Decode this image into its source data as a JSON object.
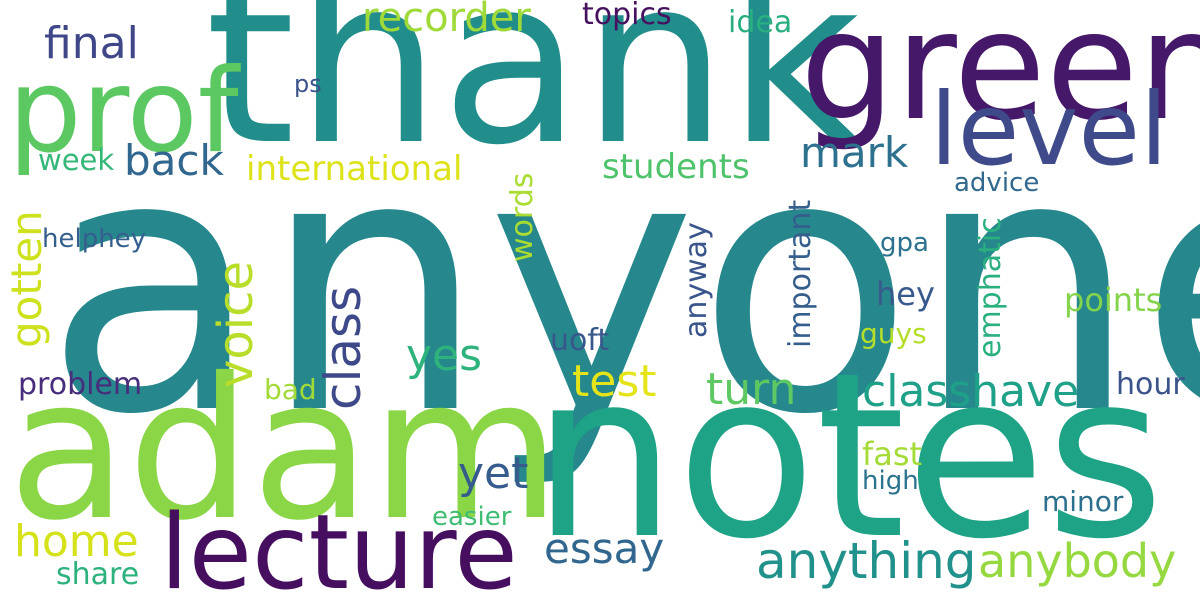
{
  "words": [
    {
      "text": "anyone",
      "color": "#26888d"
    },
    {
      "text": "thank",
      "color": "#218e8c"
    },
    {
      "text": "notes",
      "color": "#1fa386"
    },
    {
      "text": "green",
      "color": "#46186a"
    },
    {
      "text": "adam",
      "color": "#8bd646"
    },
    {
      "text": "prof",
      "color": "#5bc862"
    },
    {
      "text": "lecture",
      "color": "#450e5e"
    },
    {
      "text": "level",
      "color": "#3e4a89"
    },
    {
      "text": "recorder",
      "color": "#a0da39"
    },
    {
      "text": "final",
      "color": "#3f4788"
    },
    {
      "text": "topics",
      "color": "#46115f"
    },
    {
      "text": "idea",
      "color": "#29af7f"
    },
    {
      "text": "ps",
      "color": "#3b528b"
    },
    {
      "text": "back",
      "color": "#31668e"
    },
    {
      "text": "mark",
      "color": "#2d718e"
    },
    {
      "text": "week",
      "color": "#35b779"
    },
    {
      "text": "international",
      "color": "#dde318"
    },
    {
      "text": "students",
      "color": "#4ec36b"
    },
    {
      "text": "advice",
      "color": "#31698e"
    },
    {
      "text": "gotten",
      "color": "#cde11d"
    },
    {
      "text": "words",
      "color": "#aadc32"
    },
    {
      "text": "helphey",
      "color": "#355f8d"
    },
    {
      "text": "voice",
      "color": "#b8de29"
    },
    {
      "text": "class",
      "color": "#3e4989"
    },
    {
      "text": "anyway",
      "color": "#39558c"
    },
    {
      "text": "important",
      "color": "#355e8d"
    },
    {
      "text": "emphatic",
      "color": "#2ab07f"
    },
    {
      "text": "gpa",
      "color": "#2c728e"
    },
    {
      "text": "hey",
      "color": "#38598c"
    },
    {
      "text": "points",
      "color": "#83d34b"
    },
    {
      "text": "guys",
      "color": "#b5de2b"
    },
    {
      "text": "yes",
      "color": "#2eb37c"
    },
    {
      "text": "uoft",
      "color": "#38588c"
    },
    {
      "text": "problem",
      "color": "#472d7b"
    },
    {
      "text": "test",
      "color": "#e5e419"
    },
    {
      "text": "turn",
      "color": "#5ec962"
    },
    {
      "text": "classhave",
      "color": "#1fa088"
    },
    {
      "text": "hour",
      "color": "#3a538b"
    },
    {
      "text": "bad",
      "color": "#a2da37"
    },
    {
      "text": "yet",
      "color": "#365c8d"
    },
    {
      "text": "fast",
      "color": "#a5db36"
    },
    {
      "text": "high",
      "color": "#2c738e"
    },
    {
      "text": "minor",
      "color": "#2d708e"
    },
    {
      "text": "home",
      "color": "#d5e21a"
    },
    {
      "text": "easier",
      "color": "#3fbc73"
    },
    {
      "text": "essay",
      "color": "#31668e"
    },
    {
      "text": "anything",
      "color": "#21918c"
    },
    {
      "text": "anybody",
      "color": "#95d840"
    },
    {
      "text": "share",
      "color": "#2db27d"
    }
  ]
}
